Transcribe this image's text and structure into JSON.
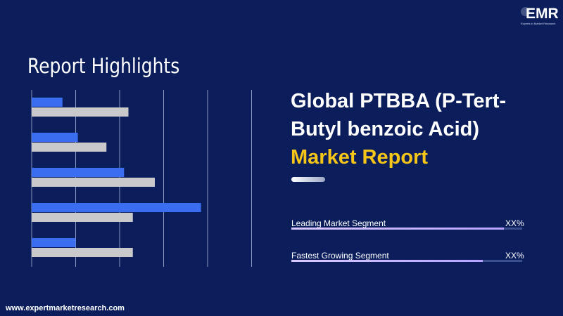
{
  "brand": {
    "logo_text": "EMR",
    "logo_tagline": "Experts in Market Research",
    "website": "www.expertmarketresearch.com"
  },
  "left_panel": {
    "title": "Report Highlights"
  },
  "heading": {
    "line1": "Global PTBBA (P-Tert-",
    "line2": "Butyl benzoic Acid)",
    "line3": "Market Report"
  },
  "metrics": [
    {
      "label": "Leading Market Segment",
      "value": "XX%",
      "level": 0.92
    },
    {
      "label": "Fastest Growing Segment",
      "value": "XX%",
      "level": 0.83
    }
  ],
  "colors": {
    "background": "#0b1e5b",
    "series_blue": "#3a6df0",
    "series_gray": "#c9c9cc",
    "accent_yellow": "#f5c518",
    "grid": "#8a97bf"
  },
  "chart_data": {
    "type": "bar",
    "orientation": "horizontal",
    "categories": [
      "",
      "",
      "",
      "",
      ""
    ],
    "series": [
      {
        "values": [
          0.7,
          1.05,
          2.1,
          3.85,
          1.0
        ]
      },
      {
        "values": [
          2.2,
          1.7,
          2.8,
          2.3,
          2.3
        ]
      }
    ],
    "xlim": [
      0,
      5
    ],
    "grid": true,
    "gridlines_x": [
      0,
      1,
      2,
      3,
      4,
      5
    ],
    "legend": "none"
  }
}
